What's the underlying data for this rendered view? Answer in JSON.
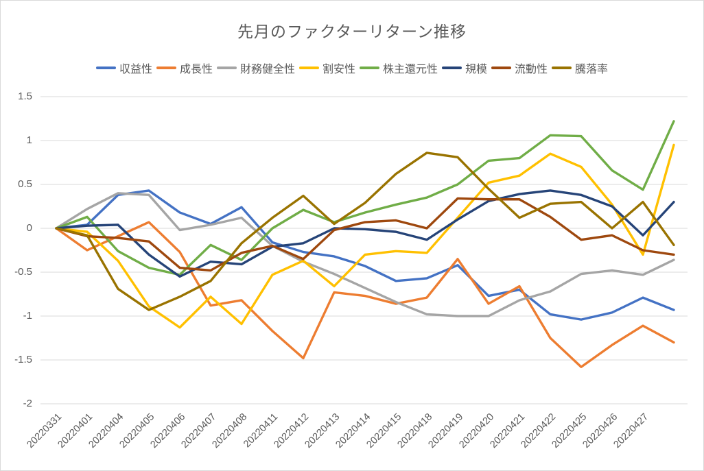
{
  "chart": {
    "title": "先月のファクターリターン推移"
  },
  "chart_data": {
    "type": "line",
    "title": "先月のファクターリターン推移",
    "categories": [
      "20220331",
      "20220401",
      "20220404",
      "20220405",
      "20220406",
      "20220407",
      "20220408",
      "20220411",
      "20220412",
      "20220413",
      "20220414",
      "20220415",
      "20220418",
      "20220419",
      "20220420",
      "20220421",
      "20220422",
      "20220425",
      "20220426",
      "20220427",
      ""
    ],
    "final_point_unlabeled": true,
    "series": [
      {
        "name": "収益性",
        "color": "#4472C4",
        "values": [
          0,
          0.04,
          0.38,
          0.43,
          0.18,
          0.05,
          0.24,
          -0.16,
          -0.27,
          -0.32,
          -0.43,
          -0.6,
          -0.57,
          -0.42,
          -0.77,
          -0.7,
          -0.98,
          -1.04,
          -0.96,
          -0.79,
          -0.93
        ]
      },
      {
        "name": "成長性",
        "color": "#ED7D31",
        "values": [
          0,
          -0.25,
          -0.09,
          0.07,
          -0.27,
          -0.88,
          -0.82,
          -1.17,
          -1.48,
          -0.73,
          -0.77,
          -0.86,
          -0.79,
          -0.35,
          -0.86,
          -0.66,
          -1.25,
          -1.58,
          -1.33,
          -1.11,
          -1.3
        ]
      },
      {
        "name": "財務健全性",
        "color": "#A5A5A5",
        "values": [
          0,
          0.22,
          0.4,
          0.38,
          -0.02,
          0.04,
          0.12,
          -0.2,
          -0.38,
          -0.52,
          -0.68,
          -0.84,
          -0.98,
          -1.0,
          -1.0,
          -0.82,
          -0.72,
          -0.52,
          -0.48,
          -0.53,
          -0.36
        ]
      },
      {
        "name": "割安性",
        "color": "#FFC000",
        "values": [
          0,
          -0.04,
          -0.37,
          -0.89,
          -1.13,
          -0.78,
          -1.09,
          -0.53,
          -0.37,
          -0.66,
          -0.3,
          -0.26,
          -0.28,
          0.12,
          0.52,
          0.6,
          0.85,
          0.7,
          0.27,
          -0.3,
          0.95
        ]
      },
      {
        "name": "株主還元性",
        "color": "#70AD47",
        "values": [
          0,
          0.13,
          -0.26,
          -0.45,
          -0.53,
          -0.19,
          -0.36,
          0.0,
          0.21,
          0.07,
          0.18,
          0.27,
          0.35,
          0.5,
          0.77,
          0.8,
          1.06,
          1.05,
          0.66,
          0.44,
          1.22
        ]
      },
      {
        "name": "規模",
        "color": "#264478",
        "values": [
          0,
          0.03,
          0.04,
          -0.3,
          -0.55,
          -0.38,
          -0.41,
          -0.21,
          -0.17,
          0.0,
          -0.01,
          -0.04,
          -0.13,
          0.1,
          0.31,
          0.39,
          0.43,
          0.38,
          0.25,
          -0.08,
          0.3
        ]
      },
      {
        "name": "流動性",
        "color": "#9E480E",
        "values": [
          0,
          -0.09,
          -0.11,
          -0.15,
          -0.45,
          -0.48,
          -0.28,
          -0.2,
          -0.35,
          -0.02,
          0.07,
          0.09,
          0.0,
          0.34,
          0.33,
          0.33,
          0.13,
          -0.13,
          -0.08,
          -0.25,
          -0.3
        ]
      },
      {
        "name": "騰落率",
        "color": "#997300",
        "values": [
          0,
          -0.08,
          -0.69,
          -0.93,
          -0.78,
          -0.6,
          -0.17,
          0.12,
          0.37,
          0.05,
          0.29,
          0.62,
          0.86,
          0.81,
          0.45,
          0.12,
          0.28,
          0.3,
          0.0,
          0.3,
          -0.19
        ]
      }
    ],
    "ylim": [
      -2,
      1.5
    ],
    "ytick_step": 0.5,
    "yticks": [
      "1.5",
      "1",
      "0.5",
      "0",
      "-0.5",
      "-1",
      "-1.5",
      "-2"
    ],
    "grid": true,
    "legend_position": "top",
    "colors": {
      "grid": "#d9d9d9",
      "labels": "#595959",
      "background": "#ffffff"
    }
  }
}
